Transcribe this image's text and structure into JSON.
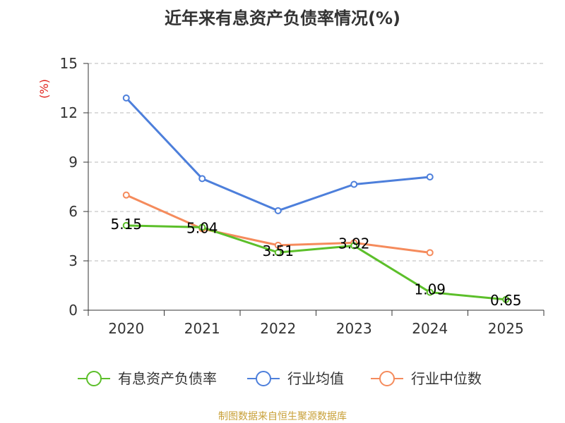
{
  "title": "近年来有息资产负债率情况(%)",
  "source_note": "制图数据来自恒生聚源数据库",
  "chart_data": {
    "type": "line",
    "title": "近年来有息资产负债率情况(%)",
    "ylabel": "(%)",
    "xlabel": "",
    "categories": [
      "2020",
      "2021",
      "2022",
      "2023",
      "2024",
      "2025"
    ],
    "ylim": [
      0,
      15
    ],
    "yticks": [
      0,
      3,
      6,
      9,
      12,
      15
    ],
    "grid": true,
    "legend_position": "bottom",
    "series": [
      {
        "name": "有息资产负债率",
        "color": "#5cbf2a",
        "values": [
          5.15,
          5.04,
          3.51,
          3.92,
          1.09,
          0.65
        ],
        "labels": [
          "5.15",
          "5.04",
          "3.51",
          "3.92",
          "1.09",
          "0.65"
        ]
      },
      {
        "name": "行业均值",
        "color": "#4d7fdb",
        "values": [
          12.9,
          8.0,
          6.05,
          7.65,
          8.1,
          null
        ]
      },
      {
        "name": "行业中位数",
        "color": "#f58b5c",
        "values": [
          7.0,
          4.95,
          3.95,
          4.1,
          3.5,
          null
        ]
      }
    ]
  }
}
